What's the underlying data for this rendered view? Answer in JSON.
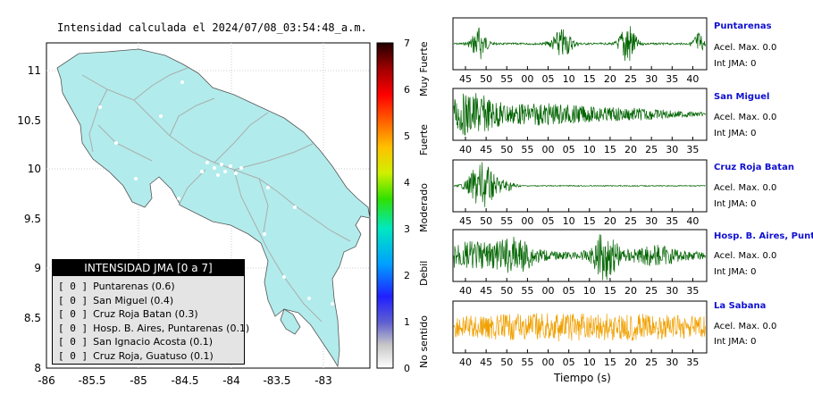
{
  "title": "Intensidad calculada el 2024/07/08_03:54:48_a.m.",
  "map": {
    "x_ticks": [
      "-86",
      "-85.5",
      "-85",
      "-84.5",
      "-84",
      "-83.5",
      "-83"
    ],
    "y_ticks": [
      "11",
      "10.5",
      "10",
      "9.5",
      "9",
      "8.5",
      "8"
    ],
    "land_color": "#b2ebeb",
    "road_color": "#a8a8a8"
  },
  "colorbar": {
    "ticks": [
      "7",
      "6",
      "5",
      "4",
      "3",
      "2",
      "1",
      "0"
    ],
    "side_labels": [
      "Muy Fuerte",
      "Fuerte",
      "Moderado",
      "Debil",
      "No sentido"
    ]
  },
  "legend": {
    "header": "INTENSIDAD JMA [0 a 7]",
    "rows": [
      {
        "bracket": "[ 0 ]",
        "text": "Puntarenas (0.6)"
      },
      {
        "bracket": "[ 0 ]",
        "text": "San Miguel (0.4)"
      },
      {
        "bracket": "[ 0 ]",
        "text": "Cruz Roja Batan (0.3)"
      },
      {
        "bracket": "[ 0 ]",
        "text": "Hosp. B. Aires, Puntarenas (0.1)"
      },
      {
        "bracket": "[ 0 ]",
        "text": "San Ignacio Acosta (0.1)"
      },
      {
        "bracket": "[ 0 ]",
        "text": "Cruz Roja, Guatuso (0.1)"
      }
    ]
  },
  "stations": [
    {
      "name": "Puntarenas",
      "accel": "Acel. Max. 0.0",
      "int": "Int JMA: 0",
      "ticks": [
        "45",
        "50",
        "55",
        "00",
        "05",
        "10",
        "15",
        "20",
        "25",
        "30",
        "35",
        "40"
      ],
      "color": "#006400"
    },
    {
      "name": "San Miguel",
      "accel": "Acel. Max. 0.0",
      "int": "Int JMA: 0",
      "ticks": [
        "40",
        "45",
        "50",
        "55",
        "00",
        "05",
        "10",
        "15",
        "20",
        "25",
        "30",
        "35"
      ],
      "color": "#006400"
    },
    {
      "name": "Cruz Roja Batan",
      "accel": "Acel. Max. 0.0",
      "int": "Int JMA: 0",
      "ticks": [
        "45",
        "50",
        "55",
        "00",
        "05",
        "10",
        "15",
        "20",
        "25",
        "30",
        "35",
        "40"
      ],
      "color": "#006400"
    },
    {
      "name": "Hosp. B. Aires, Puntare",
      "accel": "Acel. Max. 0.0",
      "int": "Int JMA: 0",
      "ticks": [
        "40",
        "45",
        "50",
        "55",
        "00",
        "05",
        "10",
        "15",
        "20",
        "25",
        "30",
        "35"
      ],
      "color": "#006400"
    },
    {
      "name": "La Sabana",
      "accel": "Acel. Max. 0.0",
      "int": "Int JMA: 0",
      "ticks": [
        "40",
        "45",
        "50",
        "55",
        "00",
        "05",
        "10",
        "15",
        "20",
        "25",
        "30",
        "35"
      ],
      "color": "#f0a000"
    }
  ],
  "xlabel": "Tiempo (s)",
  "chart_data": {
    "type": "line",
    "title": "Intensidad calculada el 2024/07/08_03:54:48_a.m.",
    "xlabel": "Tiempo (s)",
    "series": [
      {
        "name": "Puntarenas",
        "max_accel": 0.0,
        "jma": 0,
        "intensity": 0.6
      },
      {
        "name": "San Miguel",
        "max_accel": 0.0,
        "jma": 0,
        "intensity": 0.4
      },
      {
        "name": "Cruz Roja Batan",
        "max_accel": 0.0,
        "jma": 0,
        "intensity": 0.3
      },
      {
        "name": "Hosp. B. Aires, Puntarenas",
        "max_accel": 0.0,
        "jma": 0,
        "intensity": 0.1
      },
      {
        "name": "La Sabana",
        "max_accel": 0.0,
        "jma": 0
      }
    ]
  }
}
